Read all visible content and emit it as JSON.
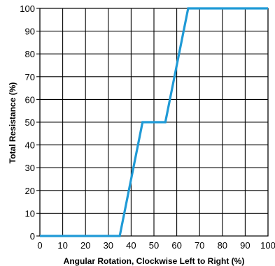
{
  "chart_data": {
    "type": "line",
    "xlabel": "Angular Rotation, Clockwise Left to Right (%)",
    "ylabel": "Total Resistance (%)",
    "xlim": [
      0,
      100
    ],
    "ylim": [
      0,
      100
    ],
    "x_ticks": [
      "0",
      "10",
      "20",
      "30",
      "40",
      "50",
      "60",
      "70",
      "80",
      "90",
      "100"
    ],
    "y_ticks": [
      "0",
      "10",
      "20",
      "30",
      "40",
      "50",
      "60",
      "70",
      "80",
      "90",
      "100"
    ],
    "grid": true,
    "series": [
      {
        "color": "#1f9ad6",
        "x": [
          0,
          35,
          45,
          55,
          65,
          100
        ],
        "y": [
          0,
          0,
          50,
          50,
          100,
          100
        ]
      }
    ]
  }
}
